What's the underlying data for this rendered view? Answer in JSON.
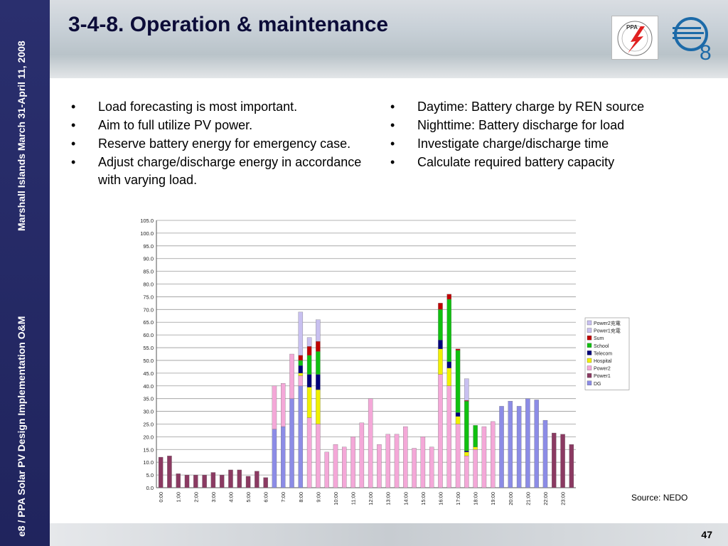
{
  "sidebar": {
    "text_top": "Marshall Islands March 31-April 11, 2008",
    "text_bottom": "e8 / PPA Solar PV Design Implementation O&M"
  },
  "header": {
    "title": "3-4-8. Operation & maintenance",
    "logo_ppa": "PPA",
    "logo_e8_letter": "e",
    "logo_e8_sub": "8"
  },
  "bullets_left": [
    "Load forecasting is most important.",
    "Aim to full utilize PV power.",
    "Reserve battery energy for emergency case.",
    "Adjust charge/discharge energy in accordance with varying load."
  ],
  "bullets_right": [
    "Daytime: Battery charge by REN source",
    "Nighttime: Battery discharge for load",
    "Investigate charge/discharge time",
    "Calculate required battery capacity"
  ],
  "source": "Source: NEDO",
  "page_number": "47",
  "colors": {
    "DG": "#8c8ce6",
    "Power1": "#8b3a62",
    "Power2": "#f4a8d8",
    "Hospital": "#f0f000",
    "Telecom": "#00007a",
    "School": "#10c010",
    "Sum": "#c00000",
    "Power1 charge": "#c8c0f0",
    "Power2 charge": "#c8c0f0"
  },
  "chart_data": {
    "type": "bar",
    "stacked": true,
    "y_ticks": [
      "0.0",
      "5.0",
      "10.0",
      "15.0",
      "20.0",
      "25.0",
      "30.0",
      "35.0",
      "40.0",
      "45.0",
      "50.0",
      "55.0",
      "60.0",
      "65.0",
      "70.0",
      "75.0",
      "80.0",
      "85.0",
      "90.0",
      "95.0",
      "100.0",
      "105.0"
    ],
    "ylim": [
      0,
      105
    ],
    "x_ticks": [
      "0:00",
      "1:00",
      "2:00",
      "3:00",
      "4:00",
      "5:00",
      "6:00",
      "7:00",
      "8:00",
      "9:00",
      "10:00",
      "11:00",
      "12:00",
      "13:00",
      "14:00",
      "15:00",
      "16:00",
      "17:00",
      "18:00",
      "19:00",
      "20:00",
      "21:00",
      "22:00",
      "23:00"
    ],
    "legend": [
      "Power2充電",
      "Power1充電",
      "Sum",
      "School",
      "Telecom",
      "Hospital",
      "Power2",
      "Power1",
      "DG"
    ],
    "legend_position": "right",
    "grid": true,
    "series_names": [
      "DG",
      "Power1",
      "Power2",
      "Hospital",
      "Telecom",
      "School",
      "Sum",
      "Power1 charge"
    ],
    "bars": [
      {
        "Power1": 12
      },
      {
        "Power1": 12.5
      },
      {
        "Power1": 5.5
      },
      {
        "Power1": 5
      },
      {
        "Power1": 5
      },
      {
        "Power1": 5
      },
      {
        "Power1": 6
      },
      {
        "Power1": 5
      },
      {
        "Power1": 7
      },
      {
        "Power1": 7
      },
      {
        "Power1": 4.5
      },
      {
        "Power1": 6.5
      },
      {
        "Power1": 4
      },
      {
        "DG": 23,
        "Power2": 17
      },
      {
        "DG": 24,
        "Power2": 17
      },
      {
        "DG": 35,
        "Power2": 17.5
      },
      {
        "DG": 40,
        "Power2": 4,
        "Hospital": 1,
        "Telecom": 3,
        "School": 2,
        "Sum": 2,
        "Power1 charge": 17
      },
      {
        "Power2": 27.5,
        "Hospital": 12,
        "Telecom": 5,
        "School": 7.5,
        "Sum": 3.5,
        "Power1 charge": 3.5
      },
      {
        "Power2": 25,
        "Hospital": 13.5,
        "Telecom": 6,
        "School": 9,
        "Sum": 4,
        "Power1 charge": 8.5
      },
      {
        "Power2": 14
      },
      {
        "Power2": 17
      },
      {
        "Power2": 16
      },
      {
        "Power2": 20
      },
      {
        "Power2": 25.5
      },
      {
        "Power2": 35
      },
      {
        "Power2": 17
      },
      {
        "Power2": 21
      },
      {
        "Power2": 21
      },
      {
        "Power2": 24
      },
      {
        "Power2": 15.5
      },
      {
        "Power2": 20
      },
      {
        "Power2": 16
      },
      {
        "Power2": 44.5,
        "Hospital": 10,
        "Telecom": 3.5,
        "School": 12,
        "Sum": 2.5
      },
      {
        "Power2": 40,
        "Hospital": 7,
        "Telecom": 2.5,
        "School": 24.5,
        "Sum": 2
      },
      {
        "Power2": 25,
        "Hospital": 3,
        "Telecom": 1.5,
        "School": 24.5,
        "Sum": 0.5
      },
      {
        "Power2": 12.5,
        "Hospital": 1.5,
        "Telecom": 0.5,
        "School": 19.5,
        "Sum": 0.3,
        "Power1 charge": 8.5
      },
      {
        "Power2": 15,
        "Hospital": 1,
        "School": 8.5
      },
      {
        "Power2": 24
      },
      {
        "Power2": 26
      },
      {
        "DG": 32
      },
      {
        "DG": 34
      },
      {
        "DG": 32
      },
      {
        "DG": 35
      },
      {
        "DG": 34.5
      },
      {
        "DG": 26.5
      },
      {
        "Power1": 21.5
      },
      {
        "Power1": 21
      },
      {
        "Power1": 17
      }
    ]
  }
}
